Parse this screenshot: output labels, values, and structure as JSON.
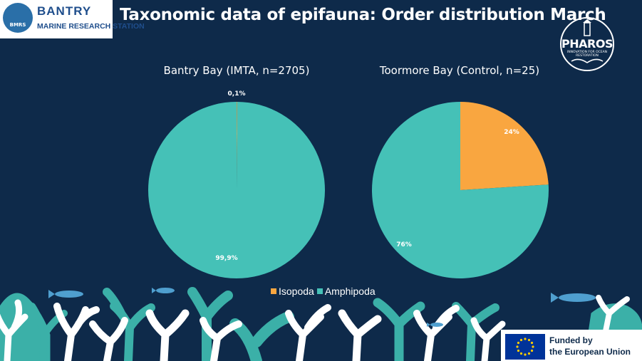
{
  "header": {
    "logo_text_1": "BANTRY",
    "logo_text_2": "MARINE RESEARCH STATION",
    "logo_mark": "BMRS",
    "title": "Taxonomic  data of epifauna: Order distribution March"
  },
  "pharos_logo": {
    "name": "PHAROS",
    "tagline": "INNOVATION FOR OCEAN RESTORATION"
  },
  "colors": {
    "background": "#0e2a4a",
    "isopoda": "#f9a640",
    "amphipoda": "#45c1b7",
    "coral_teal": "#3bb0a8",
    "coral_white": "#ffffff",
    "fish": "#4f9fcf"
  },
  "chart_data": [
    {
      "type": "pie",
      "title": "Bantry Bay (IMTA, n=2705)",
      "categories": [
        "Isopoda",
        "Amphipoda"
      ],
      "values": [
        0.1,
        99.9
      ],
      "labels": [
        "0,1%",
        "99,9%"
      ],
      "legend": "bottom"
    },
    {
      "type": "pie",
      "title": "Toormore Bay (Control, n=25)",
      "categories": [
        "Isopoda",
        "Amphipoda"
      ],
      "values": [
        24,
        76
      ],
      "labels": [
        "24%",
        "76%"
      ],
      "legend": "bottom"
    }
  ],
  "legend": {
    "items": [
      {
        "label": "Isopoda",
        "color": "#f9a640"
      },
      {
        "label": "Amphipoda",
        "color": "#45c1b7"
      }
    ]
  },
  "eu_badge": {
    "line1": "Funded by",
    "line2": "the European Union"
  }
}
